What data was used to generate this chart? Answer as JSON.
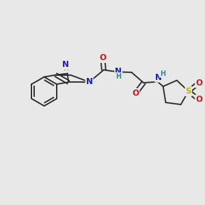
{
  "bg_color": "#e8e8e8",
  "bond_color": "#2d2d2d",
  "bond_width": 1.4,
  "atom_colors": {
    "N": "#1a1acc",
    "O": "#cc1a1a",
    "S": "#b8b800",
    "H": "#3a8888",
    "C": "#2d2d2d"
  },
  "font_size_atom": 8.5,
  "font_size_H": 7.0
}
